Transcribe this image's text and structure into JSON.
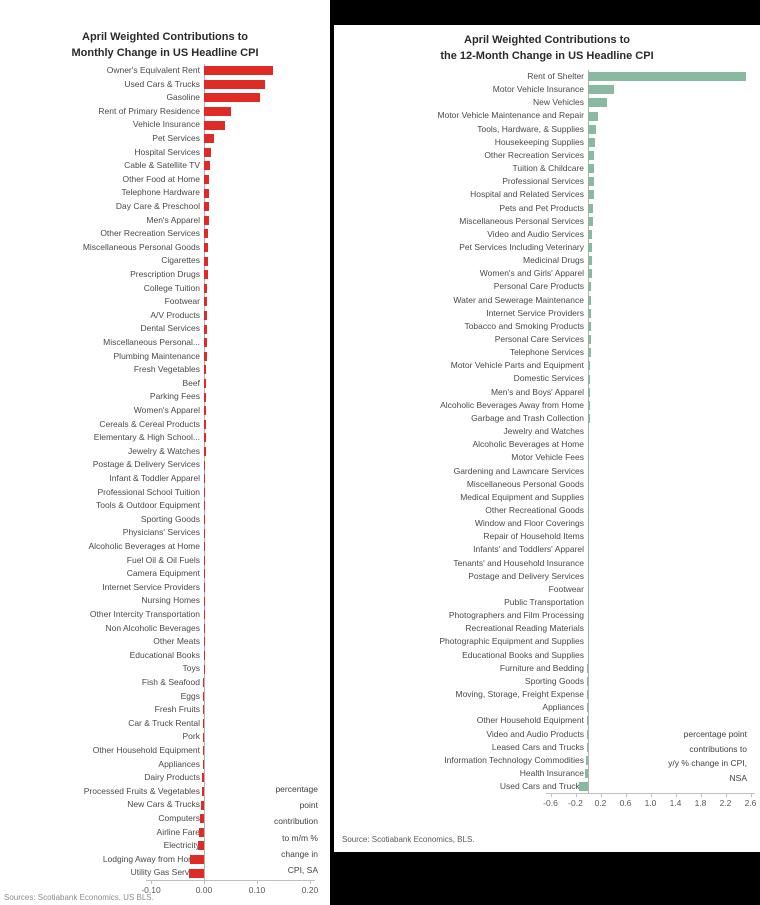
{
  "chart_data": [
    {
      "type": "bar",
      "orientation": "horizontal",
      "title": "April Weighted Contributions to Monthly Change in US Headline CPI",
      "title_line1": "April Weighted Contributions to",
      "title_line2": "Monthly Change in US Headline CPI",
      "note": "percentage\npoint\ncontribution\nto m/m %\nchange in\nCPI, SA",
      "source": "Sources: Scotiabank Economics, US BLS.",
      "bar_color": "#df2b26",
      "x_ticks": [
        "-0.10",
        "0.00",
        "0.10",
        "0.20"
      ],
      "xlim": [
        -0.12,
        0.215
      ],
      "units": "percentage point contribution to m/m % change in CPI, SA",
      "categories": [
        "Owner's Equivalent Rent",
        "Used Cars & Trucks",
        "Gasoline",
        "Rent of Primary Residence",
        "Vehicle Insurance",
        "Pet Services",
        "Hospital Services",
        "Cable & Satellite TV",
        "Other Food at Home",
        "Telephone Hardware",
        "Day Care & Preschool",
        "Men's Apparel",
        "Other Recreation Services",
        "Miscellaneous Personal Goods",
        "Cigarettes",
        "Prescription Drugs",
        "College Tuition",
        "Footwear",
        "A/V Products",
        "Dental Services",
        "Miscellaneous Personal...",
        "Plumbing Maintenance",
        "Fresh Vegetables",
        "Beef",
        "Parking Fees",
        "Women's Apparel",
        "Cereals & Cereal Products",
        "Elementary & High School...",
        "Jewelry & Watches",
        "Postage & Delivery Services",
        "Infant & Toddler Apparel",
        "Professional School Tuition",
        "Tools & Outdoor Equipment",
        "Sporting Goods",
        "Physicians' Services",
        "Alcoholic Beverages at Home",
        "Fuel Oil & Oil Fuels",
        "Camera Equipment",
        "Internet Service Providers",
        "Nursing Homes",
        "Other Intercity Transportation",
        "Non Alcoholic Beverages",
        "Other Meats",
        "Educational Books",
        "Toys",
        "Fish & Seafood",
        "Eggs",
        "Fresh Fruits",
        "Car & Truck Rental",
        "Pork",
        "Other Household Equipment",
        "Appliances",
        "Dairy Products",
        "Processed Fruits & Vegetables",
        "New Cars & Trucks",
        "Computers",
        "Airline Fare",
        "Electricity",
        "Lodging Away from Home",
        "Utility Gas Service"
      ],
      "values": [
        0.13,
        0.115,
        0.105,
        0.05,
        0.04,
        0.018,
        0.013,
        0.011,
        0.01,
        0.01,
        0.009,
        0.009,
        0.008,
        0.008,
        0.007,
        0.007,
        0.006,
        0.006,
        0.006,
        0.005,
        0.005,
        0.005,
        0.004,
        0.004,
        0.004,
        0.003,
        0.003,
        0.003,
        0.003,
        0.002,
        0.002,
        0.002,
        0.002,
        0.002,
        0.001,
        0.001,
        0.001,
        0.001,
        0.001,
        0.001,
        0.0,
        0.0,
        0.0,
        0.0,
        0.0,
        -0.001,
        -0.001,
        -0.001,
        -0.001,
        -0.002,
        -0.002,
        -0.002,
        -0.003,
        -0.003,
        -0.005,
        -0.007,
        -0.009,
        -0.011,
        -0.027,
        -0.029
      ]
    },
    {
      "type": "bar",
      "orientation": "horizontal",
      "title": "April Weighted Contributions to the 12-Month Change in US Headline CPI",
      "title_line1": "April Weighted Contributions to",
      "title_line2": "the 12-Month Change in US Headline CPI",
      "note": "percentage point\ncontributions to\ny/y % change in CPI,\nNSA",
      "source": "Source: Scotiabank Economics, BLS.",
      "bar_color": "#8ab9a2",
      "x_ticks": [
        "-0.6",
        "-0.2",
        "0.2",
        "0.6",
        "1.0",
        "1.4",
        "1.8",
        "2.2",
        "2.6"
      ],
      "xlim": [
        -0.72,
        2.72
      ],
      "units": "percentage point contributions to y/y % change in CPI, NSA",
      "categories": [
        "Rent of Shelter",
        "Motor Vehicle Insurance",
        "New Vehicles",
        "Motor Vehicle Maintenance and Repair",
        "Tools, Hardware, & Supplies",
        "Housekeeping Supplies",
        "Other Recreation Services",
        "Tuition & Childcare",
        "Professional Services",
        "Hospital and Related Services",
        "Pets and Pet Products",
        "Miscellaneous Personal Services",
        "Video and Audio Services",
        "Pet Services Including Veterinary",
        "Medicinal Drugs",
        "Women's and Girls' Apparel",
        "Personal Care Products",
        "Water and Sewerage Maintenance",
        "Internet Service Providers",
        "Tobacco and Smoking Products",
        "Personal Care Services",
        "Telephone Services",
        "Motor Vehicle Parts and Equipment",
        "Domestic Services",
        "Men's and Boys' Apparel",
        "Alcoholic Beverages Away from Home",
        "Garbage and Trash Collection",
        "Jewelry and Watches",
        "Alcoholic Beverages at Home",
        "Motor Vehicle Fees",
        "Gardening and Lawncare Services",
        "Miscellaneous Personal Goods",
        "Medical Equipment and Supplies",
        "Other Recreational Goods",
        "Window and Floor Coverings",
        "Repair of Household Items",
        "Infants' and Toddlers' Apparel",
        "Tenants' and Household Insurance",
        "Postage and Delivery Services",
        "Footwear",
        "Public Transportation",
        "Photographers and Film Processing",
        "Recreational Reading Materials",
        "Photographic Equipment and Supplies",
        "Educational Books and Supplies",
        "Furniture and Bedding",
        "Sporting Goods",
        "Moving, Storage, Freight Expense",
        "Appliances",
        "Other Household Equipment",
        "Video and Audio Products",
        "Leased Cars and Trucks",
        "Information Technology Commodities",
        "Health Insurance",
        "Used Cars and Trucks"
      ],
      "values": [
        2.52,
        0.42,
        0.3,
        0.16,
        0.12,
        0.11,
        0.1,
        0.1,
        0.09,
        0.09,
        0.08,
        0.08,
        0.07,
        0.07,
        0.06,
        0.06,
        0.05,
        0.05,
        0.05,
        0.04,
        0.04,
        0.04,
        0.03,
        0.03,
        0.03,
        0.03,
        0.03,
        0.02,
        0.02,
        0.02,
        0.02,
        0.02,
        0.015,
        0.015,
        0.01,
        0.01,
        0.01,
        0.01,
        0.01,
        0.01,
        0.008,
        0.006,
        0.005,
        0.004,
        0.003,
        -0.005,
        -0.006,
        -0.008,
        -0.01,
        -0.012,
        -0.015,
        -0.02,
        -0.03,
        -0.05,
        -0.15
      ]
    }
  ]
}
